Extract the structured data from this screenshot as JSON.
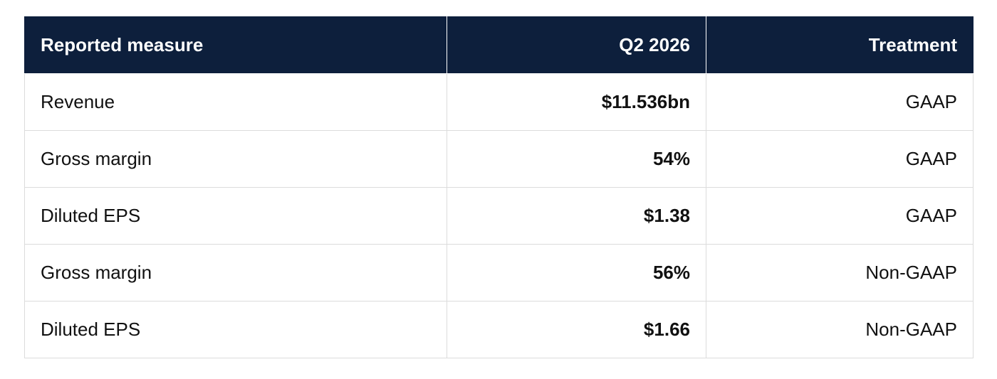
{
  "table": {
    "headers": {
      "measure": "Reported measure",
      "period": "Q2 2026",
      "treatment": "Treatment"
    },
    "rows": [
      {
        "measure": "Revenue",
        "value": "$11.536bn",
        "treatment": "GAAP"
      },
      {
        "measure": "Gross margin",
        "value": "54%",
        "treatment": "GAAP"
      },
      {
        "measure": "Diluted EPS",
        "value": "$1.38",
        "treatment": "GAAP"
      },
      {
        "measure": "Gross margin",
        "value": "56%",
        "treatment": "Non-GAAP"
      },
      {
        "measure": "Diluted EPS",
        "value": "$1.66",
        "treatment": "Non-GAAP"
      }
    ],
    "colors": {
      "header_bg": "#0d1f3c",
      "header_text": "#ffffff",
      "border": "#dcdcdc"
    }
  }
}
